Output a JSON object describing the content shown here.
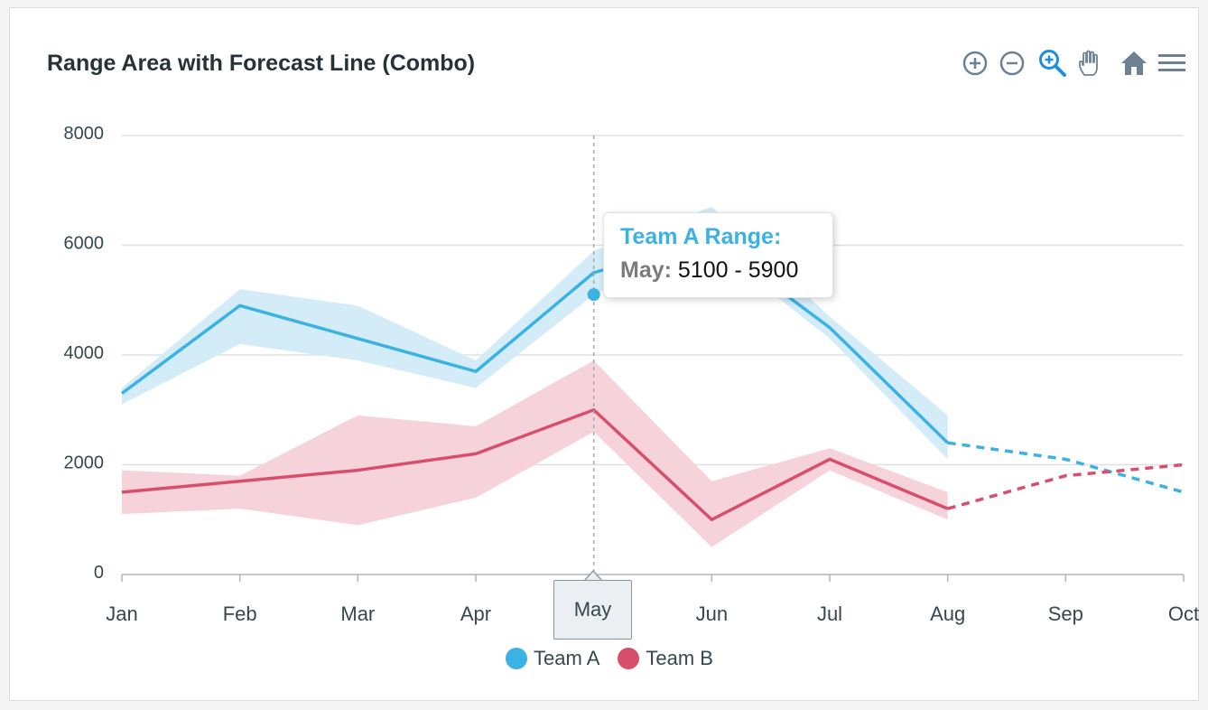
{
  "title": "Range Area with Forecast Line (Combo)",
  "toolbar": {
    "icons": [
      "zoom-in-icon",
      "zoom-out-icon",
      "selection-zoom-icon",
      "pan-hand-icon",
      "reset-home-icon",
      "menu-icon"
    ]
  },
  "colors": {
    "team_a": "#3ab2e3",
    "team_a_fill": "#d4ecf8",
    "team_b": "#d84f6c",
    "team_b_fill": "#f6d3da",
    "grid": "#e0e0e0",
    "axis_text": "#37474f"
  },
  "tooltip": {
    "title": "Team A Range:",
    "label": "May:",
    "value": "5100 - 5900"
  },
  "crosshair_label": "May",
  "legend": [
    {
      "name": "Team A",
      "color": "#3ab2e3"
    },
    {
      "name": "Team B",
      "color": "#d84f6c"
    }
  ],
  "chart_data": {
    "type": "area",
    "title": "Range Area with Forecast Line (Combo)",
    "categories": [
      "Jan",
      "Feb",
      "Mar",
      "Apr",
      "May",
      "Jun",
      "Jul",
      "Aug",
      "Sep",
      "Oct"
    ],
    "ylim": [
      0,
      8000
    ],
    "yticks": [
      0,
      2000,
      4000,
      6000,
      8000
    ],
    "grid": true,
    "legend_position": "bottom",
    "crosshair_category": "May",
    "series": [
      {
        "name": "Team A Range",
        "type": "rangeArea",
        "low": [
          3100,
          4200,
          3900,
          3400,
          5100,
          6000,
          4300,
          2100
        ],
        "high": [
          3400,
          5200,
          4900,
          3900,
          5900,
          6700,
          4700,
          2900
        ]
      },
      {
        "name": "Team B Range",
        "type": "rangeArea",
        "low": [
          1100,
          1200,
          900,
          1400,
          2600,
          500,
          1900,
          1000
        ],
        "high": [
          1900,
          1800,
          2900,
          2700,
          3900,
          1700,
          2300,
          1500
        ]
      },
      {
        "name": "Team A",
        "type": "line",
        "values": [
          3300,
          4900,
          4300,
          3700,
          5500,
          6100,
          4500,
          2400,
          2100,
          1500
        ],
        "forecast_from": "Aug"
      },
      {
        "name": "Team B",
        "type": "line",
        "values": [
          1500,
          1700,
          1900,
          2200,
          3000,
          1000,
          2100,
          1200,
          1800,
          2000
        ],
        "forecast_from": "Aug"
      }
    ],
    "hover_marker": {
      "category": "May",
      "value": 5100
    }
  }
}
